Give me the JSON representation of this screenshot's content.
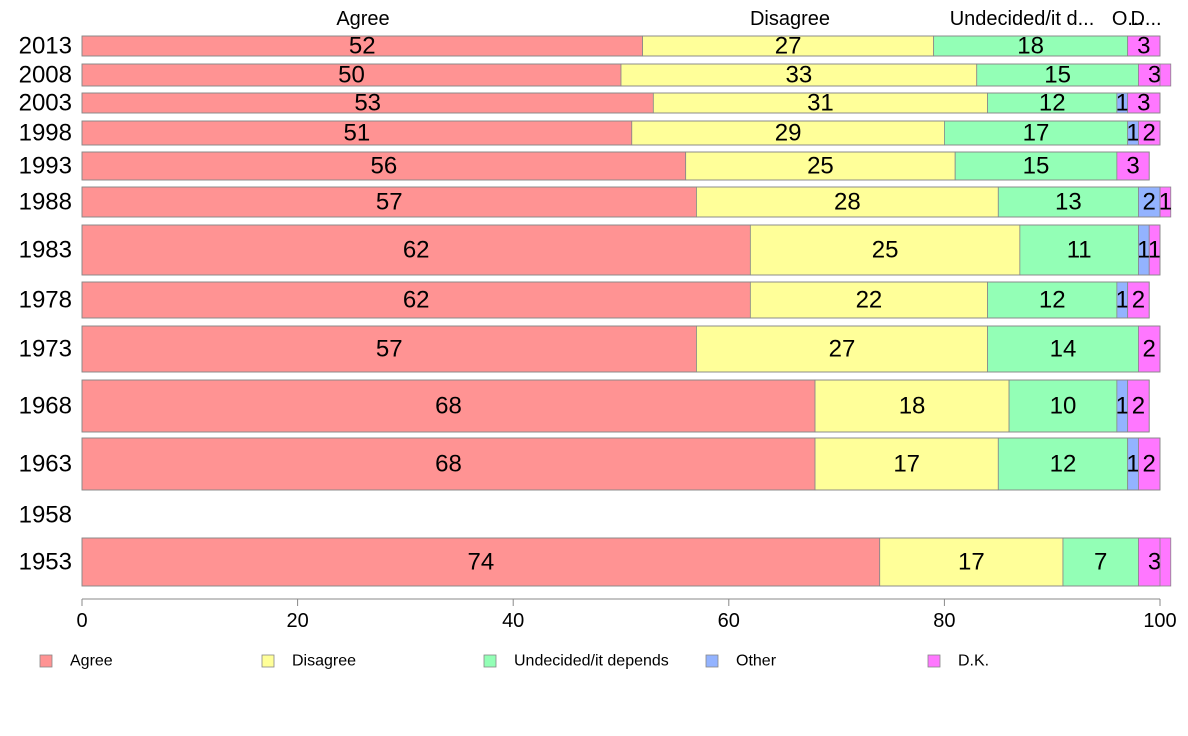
{
  "chart_data": {
    "type": "bar",
    "orientation": "horizontal",
    "stacked": true,
    "title": "",
    "xlabel": "",
    "ylabel": "",
    "xlim": [
      0,
      100
    ],
    "x_ticks": [
      0,
      20,
      40,
      60,
      80,
      100
    ],
    "grid": false,
    "legend_position": "bottom",
    "categories": [
      "2013",
      "2008",
      "2003",
      "1998",
      "1993",
      "1988",
      "1983",
      "1978",
      "1973",
      "1968",
      "1963",
      "1958",
      "1953"
    ],
    "series": [
      {
        "name": "Agree",
        "color": "#ff9393",
        "values": [
          52,
          50,
          53,
          51,
          56,
          57,
          62,
          62,
          57,
          68,
          68,
          null,
          74
        ]
      },
      {
        "name": "Disagree",
        "color": "#ffff99",
        "values": [
          27,
          33,
          31,
          29,
          25,
          28,
          25,
          22,
          27,
          18,
          17,
          null,
          17
        ]
      },
      {
        "name": "Undecided/it depends",
        "color": "#93ffb6",
        "values": [
          18,
          15,
          12,
          17,
          15,
          13,
          11,
          12,
          14,
          10,
          12,
          null,
          7
        ]
      },
      {
        "name": "Other",
        "color": "#93b3ff",
        "values": [
          0,
          0,
          1,
          1,
          0,
          2,
          1,
          1,
          0,
          1,
          1,
          null,
          0
        ]
      },
      {
        "name": "D.K.",
        "color": "#ff77ff",
        "values": [
          3,
          3,
          3,
          2,
          3,
          1,
          1,
          2,
          2,
          2,
          2,
          null,
          3
        ]
      }
    ],
    "top_labels": [
      "Agree",
      "Disagree",
      "Undecided/it d...",
      "O...",
      "D..."
    ]
  }
}
